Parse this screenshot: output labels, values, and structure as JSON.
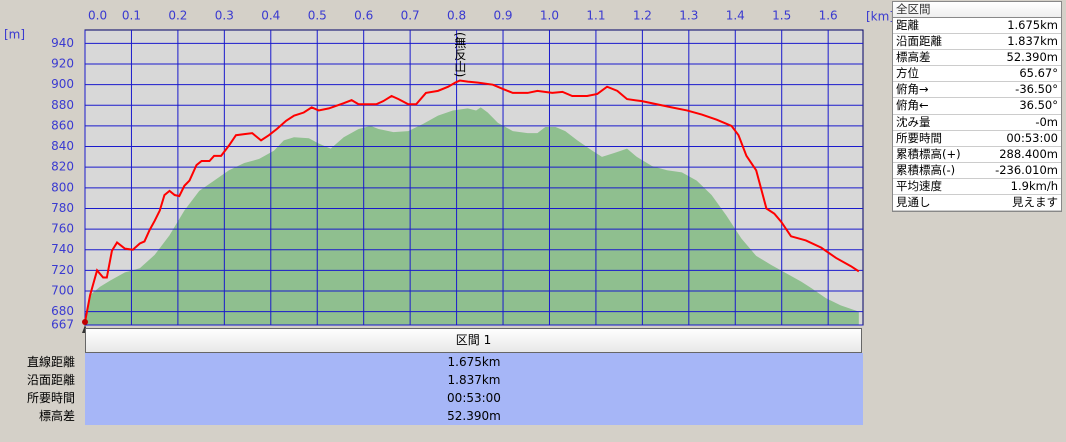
{
  "chart_data": {
    "type": "line",
    "y_unit_label": "[m]",
    "x_unit_label": "[km]",
    "annotation": "(無反山)",
    "xlim": [
      0,
      1.675
    ],
    "ylim": [
      667,
      953
    ],
    "xticks": [
      {
        "value": 0,
        "label": "0.0"
      },
      0.1,
      0.2,
      0.3,
      0.4,
      0.5,
      0.6,
      0.7,
      0.8,
      0.9,
      {
        "value": 1,
        "label": "1.0"
      },
      1.1,
      1.2,
      1.3,
      1.4,
      1.5,
      1.6
    ],
    "yticks": [
      667,
      680,
      700,
      720,
      740,
      760,
      780,
      800,
      820,
      840,
      860,
      880,
      900,
      920,
      940
    ],
    "grid": true,
    "series": [
      {
        "color": "#8fbf8f",
        "fill": true,
        "x": [
          0,
          0.011,
          0.032,
          0.054,
          0.086,
          0.118,
          0.15,
          0.182,
          0.214,
          0.246,
          0.278,
          0.31,
          0.343,
          0.375,
          0.407,
          0.428,
          0.45,
          0.482,
          0.503,
          0.529,
          0.557,
          0.589,
          0.615,
          0.632,
          0.664,
          0.696,
          0.728,
          0.76,
          0.792,
          0.824,
          0.842,
          0.852,
          0.867,
          0.889,
          0.921,
          0.953,
          0.974,
          0.991,
          1.013,
          1.034,
          1.06,
          1.092,
          1.113,
          1.141,
          1.167,
          1.188,
          1.221,
          1.253,
          1.285,
          1.317,
          1.349,
          1.381,
          1.413,
          1.445,
          1.478,
          1.51,
          1.542,
          1.563,
          1.595,
          1.627,
          1.666
        ],
        "values": [
          670,
          696,
          704,
          710,
          718,
          722,
          735,
          754,
          778,
          797,
          807,
          817,
          824,
          828,
          836,
          846,
          849,
          848,
          843,
          838,
          849,
          857,
          860,
          857,
          854,
          855,
          862,
          870,
          875,
          877,
          875,
          878,
          873,
          863,
          855,
          853,
          853,
          859,
          859,
          855,
          846,
          836,
          830,
          834,
          838,
          830,
          821,
          817,
          815,
          807,
          793,
          773,
          751,
          734,
          725,
          717,
          709,
          703,
          693,
          686,
          680
        ]
      },
      {
        "color": "#ff0000",
        "fill": false,
        "x": [
          0,
          0.011,
          0.026,
          0.039,
          0.047,
          0.058,
          0.069,
          0.086,
          0.103,
          0.118,
          0.128,
          0.139,
          0.15,
          0.161,
          0.171,
          0.182,
          0.193,
          0.203,
          0.214,
          0.225,
          0.24,
          0.251,
          0.268,
          0.278,
          0.293,
          0.31,
          0.325,
          0.343,
          0.36,
          0.379,
          0.396,
          0.413,
          0.433,
          0.45,
          0.471,
          0.488,
          0.503,
          0.525,
          0.557,
          0.574,
          0.589,
          0.61,
          0.627,
          0.642,
          0.66,
          0.675,
          0.696,
          0.713,
          0.734,
          0.76,
          0.782,
          0.797,
          0.807,
          0.824,
          0.846,
          0.878,
          0.899,
          0.921,
          0.953,
          0.974,
          1.006,
          1.028,
          1.049,
          1.081,
          1.103,
          1.124,
          1.146,
          1.167,
          1.199,
          1.231,
          1.263,
          1.296,
          1.328,
          1.36,
          1.392,
          1.407,
          1.424,
          1.445,
          1.467,
          1.484,
          1.499,
          1.52,
          1.552,
          1.585,
          1.617,
          1.649,
          1.666
        ],
        "values": [
          670,
          696,
          720,
          713,
          713,
          739,
          747,
          741,
          740,
          746,
          748,
          759,
          768,
          778,
          793,
          797,
          793,
          792,
          802,
          807,
          822,
          826,
          826,
          831,
          831,
          841,
          851,
          852,
          853,
          846,
          851,
          857,
          865,
          870,
          873,
          878,
          875,
          877,
          882,
          885,
          881,
          881,
          881,
          884,
          889,
          886,
          881,
          881,
          892,
          894,
          898,
          902,
          904,
          903,
          902,
          900,
          896,
          892,
          892,
          894,
          892,
          893,
          889,
          889,
          891,
          898,
          894,
          886,
          884,
          881,
          878,
          875,
          871,
          866,
          860,
          851,
          831,
          817,
          780,
          775,
          767,
          753,
          749,
          742,
          732,
          724,
          719
        ]
      }
    ]
  },
  "summary": {
    "title": "全区間",
    "rows": [
      [
        "距離",
        "1.675km"
      ],
      [
        "沿面距離",
        "1.837km"
      ],
      [
        "標高差",
        "52.390m"
      ],
      [
        "方位",
        "65.67°"
      ],
      [
        "俯角→",
        "-36.50°"
      ],
      [
        "俯角←",
        "36.50°"
      ],
      [
        "沈み量",
        "-0m"
      ],
      [
        "所要時間",
        "00:53:00"
      ],
      [
        "累積標高(+)",
        "288.400m"
      ],
      [
        "累積標高(-)",
        "-236.010m"
      ],
      [
        "平均速度",
        "1.9km/h"
      ],
      [
        "見通し",
        "見えます"
      ]
    ]
  },
  "section": {
    "title": "区間 1",
    "rows": [
      [
        "直線距離",
        "1.675km"
      ],
      [
        "沿面距離",
        "1.837km"
      ],
      [
        "所要時間",
        "00:53:00"
      ],
      [
        "標高差",
        "52.390m"
      ]
    ]
  }
}
